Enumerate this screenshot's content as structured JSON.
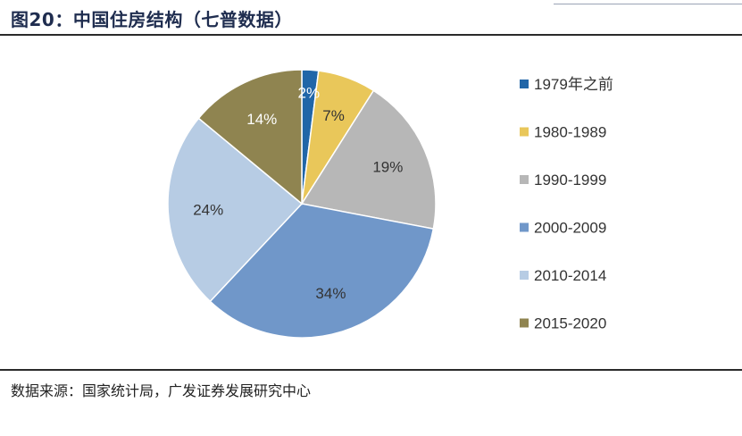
{
  "header": {
    "title": "图20：中国住房结构（七普数据）"
  },
  "footer": {
    "source": "数据来源：国家统计局，广发证券发展研究中心"
  },
  "chart_data": {
    "type": "pie",
    "title": "",
    "start_angle_deg": 0,
    "direction": "clockwise",
    "legend_position": "right",
    "slices": [
      {
        "label": "1979年之前",
        "value": 2,
        "display": "2%",
        "color": "#2166a8"
      },
      {
        "label": "1980-1989",
        "value": 7,
        "display": "7%",
        "color": "#e9c75a"
      },
      {
        "label": "1990-1999",
        "value": 19,
        "display": "19%",
        "color": "#b7b7b7"
      },
      {
        "label": "2000-2009",
        "value": 34,
        "display": "34%",
        "color": "#7097c9"
      },
      {
        "label": "2010-2014",
        "value": 24,
        "display": "24%",
        "color": "#b7cce4"
      },
      {
        "label": "2015-2020",
        "value": 14,
        "display": "14%",
        "color": "#8f8450"
      }
    ]
  }
}
